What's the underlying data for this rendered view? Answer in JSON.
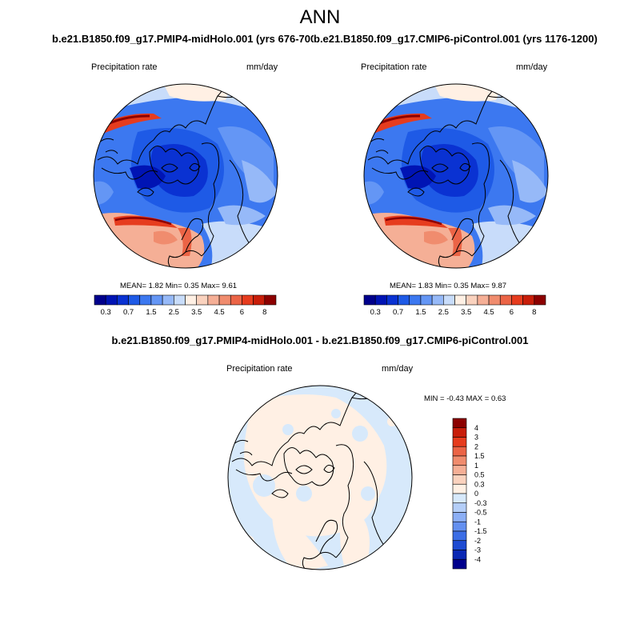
{
  "title": "ANN",
  "panels": [
    {
      "title": "b.e21.B1850.f09_g17.PMIP4-midHolo.001 (yrs 676-700)",
      "left_label": "Precipitation rate",
      "right_label": "mm/day",
      "stats": "MEAN=   1.82  Min=   0.35  Max=   9.61"
    },
    {
      "title": "b.e21.B1850.f09_g17.CMIP6-piControl.001 (yrs 1176-1200)",
      "left_label": "Precipitation rate",
      "right_label": "mm/day",
      "stats": "MEAN=   1.83  Min=   0.35  Max=   9.87"
    },
    {
      "title": "b.e21.B1850.f09_g17.PMIP4-midHolo.001 - b.e21.B1850.f09_g17.CMIP6-piControl.001",
      "left_label": "Precipitation rate",
      "right_label": "mm/day",
      "stats": "MIN =  -0.43 MAX =   0.63"
    }
  ],
  "colorbar_horizontal": {
    "colors": [
      "#00008c",
      "#0014b4",
      "#0a32d2",
      "#1e5ae6",
      "#3c78f0",
      "#6496f5",
      "#96b9f8",
      "#c8dcfa",
      "#fff0e4",
      "#fad2be",
      "#f5af96",
      "#f08c6e",
      "#eb6446",
      "#e63c1e",
      "#c81e0a",
      "#8c0000"
    ],
    "labels": [
      "0.3",
      "0.7",
      "1.5",
      "2.5",
      "3.5",
      "4.5",
      "6",
      "8"
    ]
  },
  "colorbar_vertical": {
    "colors": [
      "#8c0000",
      "#c81e0a",
      "#e63c1e",
      "#eb6446",
      "#f08c6e",
      "#f5af96",
      "#fad2be",
      "#fff0e4",
      "#d7e9fb",
      "#b4cef8",
      "#8caff5",
      "#6490f0",
      "#3c6ee6",
      "#1e4bd2",
      "#0a28b4",
      "#00008c"
    ],
    "labels": [
      "4",
      "3",
      "2",
      "1.5",
      "1",
      "0.5",
      "0.3",
      "0",
      "-0.3",
      "-0.5",
      "-1",
      "-1.5",
      "-2",
      "-3",
      "-4"
    ]
  }
}
